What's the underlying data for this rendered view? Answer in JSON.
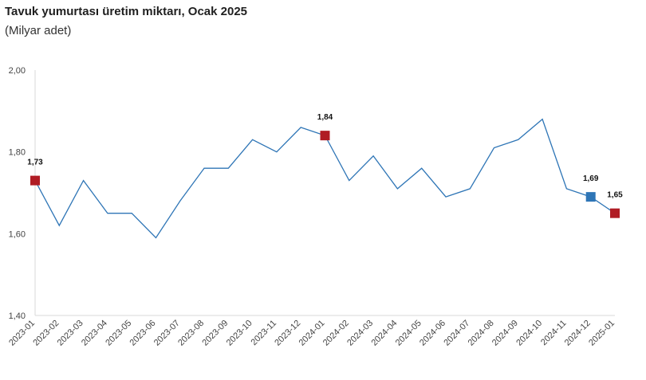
{
  "title": "Tavuk yumurtası üretim miktarı, Ocak 2025",
  "subtitle": "(Milyar adet)",
  "chart_data": {
    "type": "line",
    "title": "Tavuk yumurtası üretim miktarı, Ocak 2025",
    "subtitle": "(Milyar adet)",
    "x": [
      "2023-01",
      "2023-02",
      "2023-03",
      "2023-04",
      "2023-05",
      "2023-06",
      "2023-07",
      "2023-08",
      "2023-09",
      "2023-10",
      "2023-11",
      "2023-12",
      "2024-01",
      "2024-02",
      "2024-03",
      "2024-04",
      "2024-05",
      "2024-06",
      "2024-07",
      "2024-08",
      "2024-09",
      "2024-10",
      "2024-11",
      "2024-12",
      "2025-01"
    ],
    "series": [
      {
        "values": [
          1.73,
          1.62,
          1.73,
          1.65,
          1.65,
          1.59,
          1.68,
          1.76,
          1.76,
          1.83,
          1.8,
          1.86,
          1.84,
          1.73,
          1.79,
          1.71,
          1.76,
          1.69,
          1.71,
          1.81,
          1.83,
          1.88,
          1.71,
          1.69,
          1.65
        ],
        "color": "#2e75b6"
      }
    ],
    "ylim": [
      1.4,
      2.0
    ],
    "yticks": [
      "1,40",
      "1,60",
      "1,80",
      "2,00"
    ],
    "grid": false,
    "data_labels": [
      {
        "index": 0,
        "text": "1,73",
        "marker_color": "#b01c24"
      },
      {
        "index": 12,
        "text": "1,84",
        "marker_color": "#b01c24"
      },
      {
        "index": 23,
        "text": "1,69",
        "marker_color": "#2e75b6"
      },
      {
        "index": 24,
        "text": "1,65",
        "marker_color": "#b01c24"
      }
    ]
  }
}
